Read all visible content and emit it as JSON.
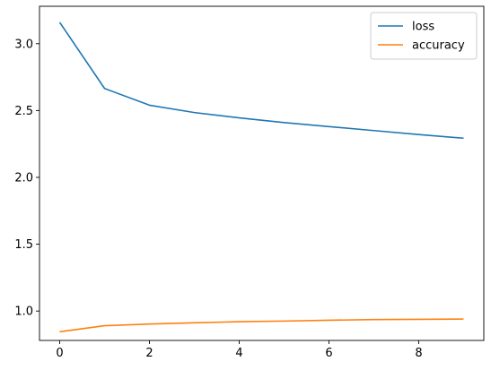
{
  "chart_data": {
    "type": "line",
    "title": "",
    "xlabel": "",
    "ylabel": "",
    "x": [
      0,
      1,
      2,
      3,
      4,
      5,
      6,
      7,
      8,
      9
    ],
    "xlim": [
      -0.45,
      9.45
    ],
    "ylim": [
      0.78,
      3.28
    ],
    "xticks": [
      0,
      2,
      4,
      6,
      8
    ],
    "yticks": [
      1.0,
      1.5,
      2.0,
      2.5,
      3.0
    ],
    "xtick_labels": [
      "0",
      "2",
      "4",
      "6",
      "8"
    ],
    "ytick_labels": [
      "1.0",
      "1.5",
      "2.0",
      "2.5",
      "3.0"
    ],
    "grid": false,
    "legend_position": "upper right",
    "series": [
      {
        "name": "loss",
        "color": "#1f77b4",
        "values": [
          3.16,
          2.665,
          2.54,
          2.485,
          2.445,
          2.41,
          2.38,
          2.35,
          2.32,
          2.293
        ]
      },
      {
        "name": "accuracy",
        "color": "#ff7f0e",
        "values": [
          0.845,
          0.89,
          0.903,
          0.912,
          0.92,
          0.925,
          0.931,
          0.936,
          0.938,
          0.94
        ]
      }
    ]
  }
}
